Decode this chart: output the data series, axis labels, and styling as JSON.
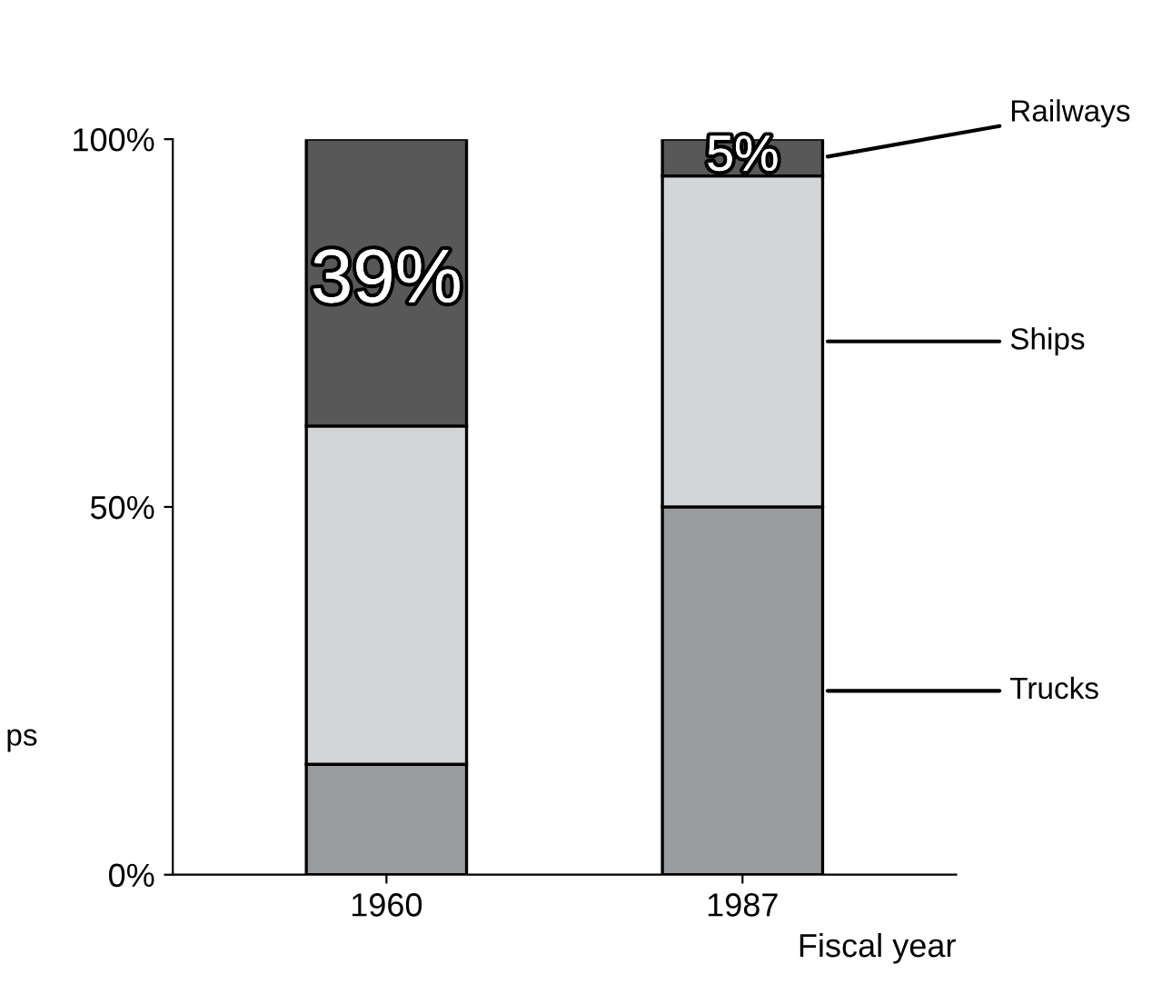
{
  "chart_data": {
    "type": "bar",
    "stacked": true,
    "categories": [
      "1960",
      "1987"
    ],
    "xlabel": "Fiscal year",
    "series": [
      {
        "name": "Trucks",
        "color": "#9a9b9d",
        "values": [
          15,
          50
        ]
      },
      {
        "name": "Ships",
        "color": "#d3d4d6",
        "values": [
          46,
          45
        ]
      },
      {
        "name": "Railways",
        "color": "#585858",
        "values": [
          39,
          5
        ],
        "value_labels": [
          "39%",
          "5%"
        ]
      }
    ],
    "ylim": [
      0,
      100
    ],
    "yticks": [
      {
        "value": 0,
        "label": "0%"
      },
      {
        "value": 50,
        "label": "50%"
      },
      {
        "value": 100,
        "label": "100%"
      }
    ],
    "grid": false,
    "annotations": [
      "ps"
    ]
  }
}
